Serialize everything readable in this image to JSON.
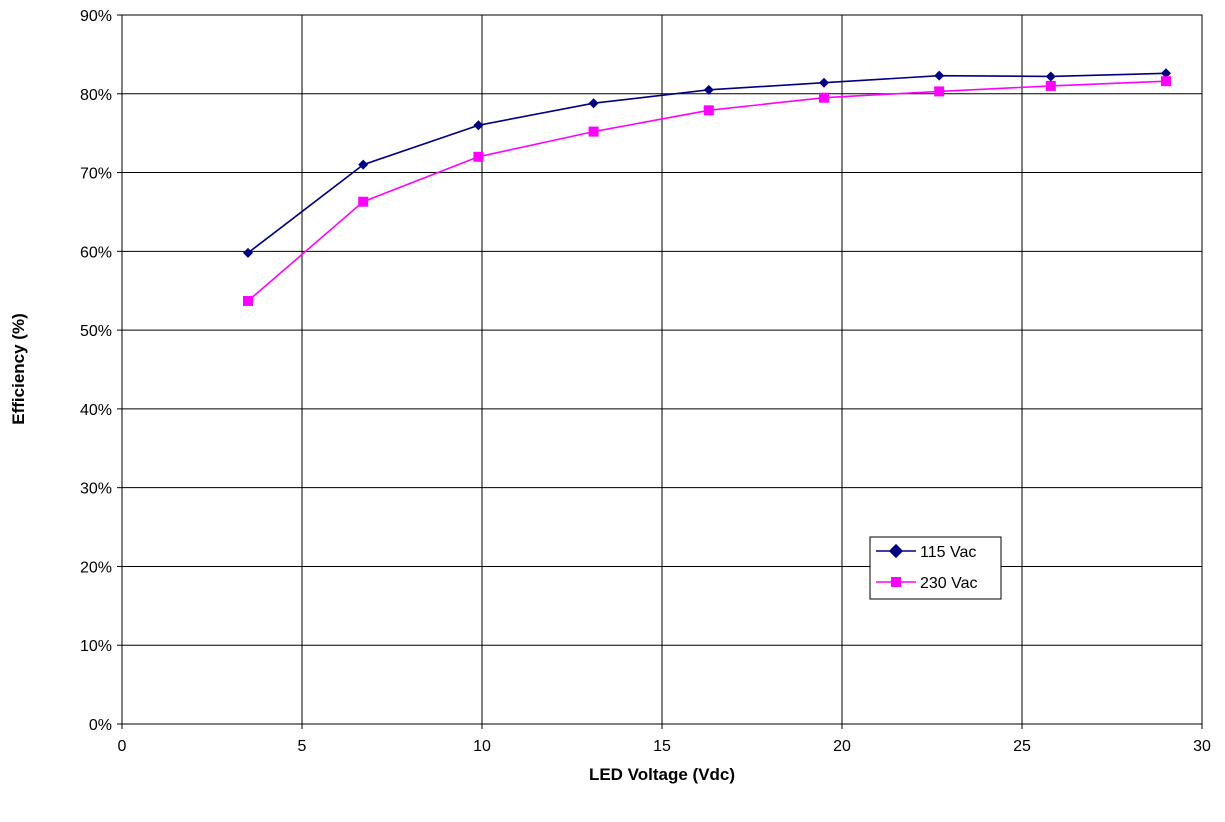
{
  "chart_data": {
    "type": "line",
    "title": "",
    "xlabel": "LED Voltage (Vdc)",
    "ylabel": "Efficiency (%)",
    "xlim": [
      0,
      30
    ],
    "ylim": [
      0,
      90
    ],
    "xticks": [
      0,
      5,
      10,
      15,
      20,
      25,
      30
    ],
    "xtick_labels": [
      "0",
      "5",
      "10",
      "15",
      "20",
      "25",
      "30"
    ],
    "yticks": [
      0,
      10,
      20,
      30,
      40,
      50,
      60,
      70,
      80,
      90
    ],
    "ytick_labels": [
      "0%",
      "10%",
      "20%",
      "30%",
      "40%",
      "50%",
      "60%",
      "70%",
      "80%",
      "90%"
    ],
    "grid": true,
    "legend_position": "lower-right",
    "series": [
      {
        "name": "115 Vac",
        "color": "#000080",
        "marker": "diamond",
        "x": [
          3.5,
          6.7,
          9.9,
          13.1,
          16.3,
          19.5,
          22.7,
          25.8,
          29.0
        ],
        "y": [
          59.8,
          71.0,
          76.0,
          78.8,
          80.5,
          81.4,
          82.3,
          82.2,
          82.6
        ]
      },
      {
        "name": "230 Vac",
        "color": "#ff00ff",
        "marker": "square",
        "x": [
          3.5,
          6.7,
          9.9,
          13.1,
          16.3,
          19.5,
          22.7,
          25.8,
          29.0
        ],
        "y": [
          53.7,
          66.3,
          72.0,
          75.2,
          77.9,
          79.5,
          80.3,
          81.0,
          81.6
        ]
      }
    ]
  }
}
